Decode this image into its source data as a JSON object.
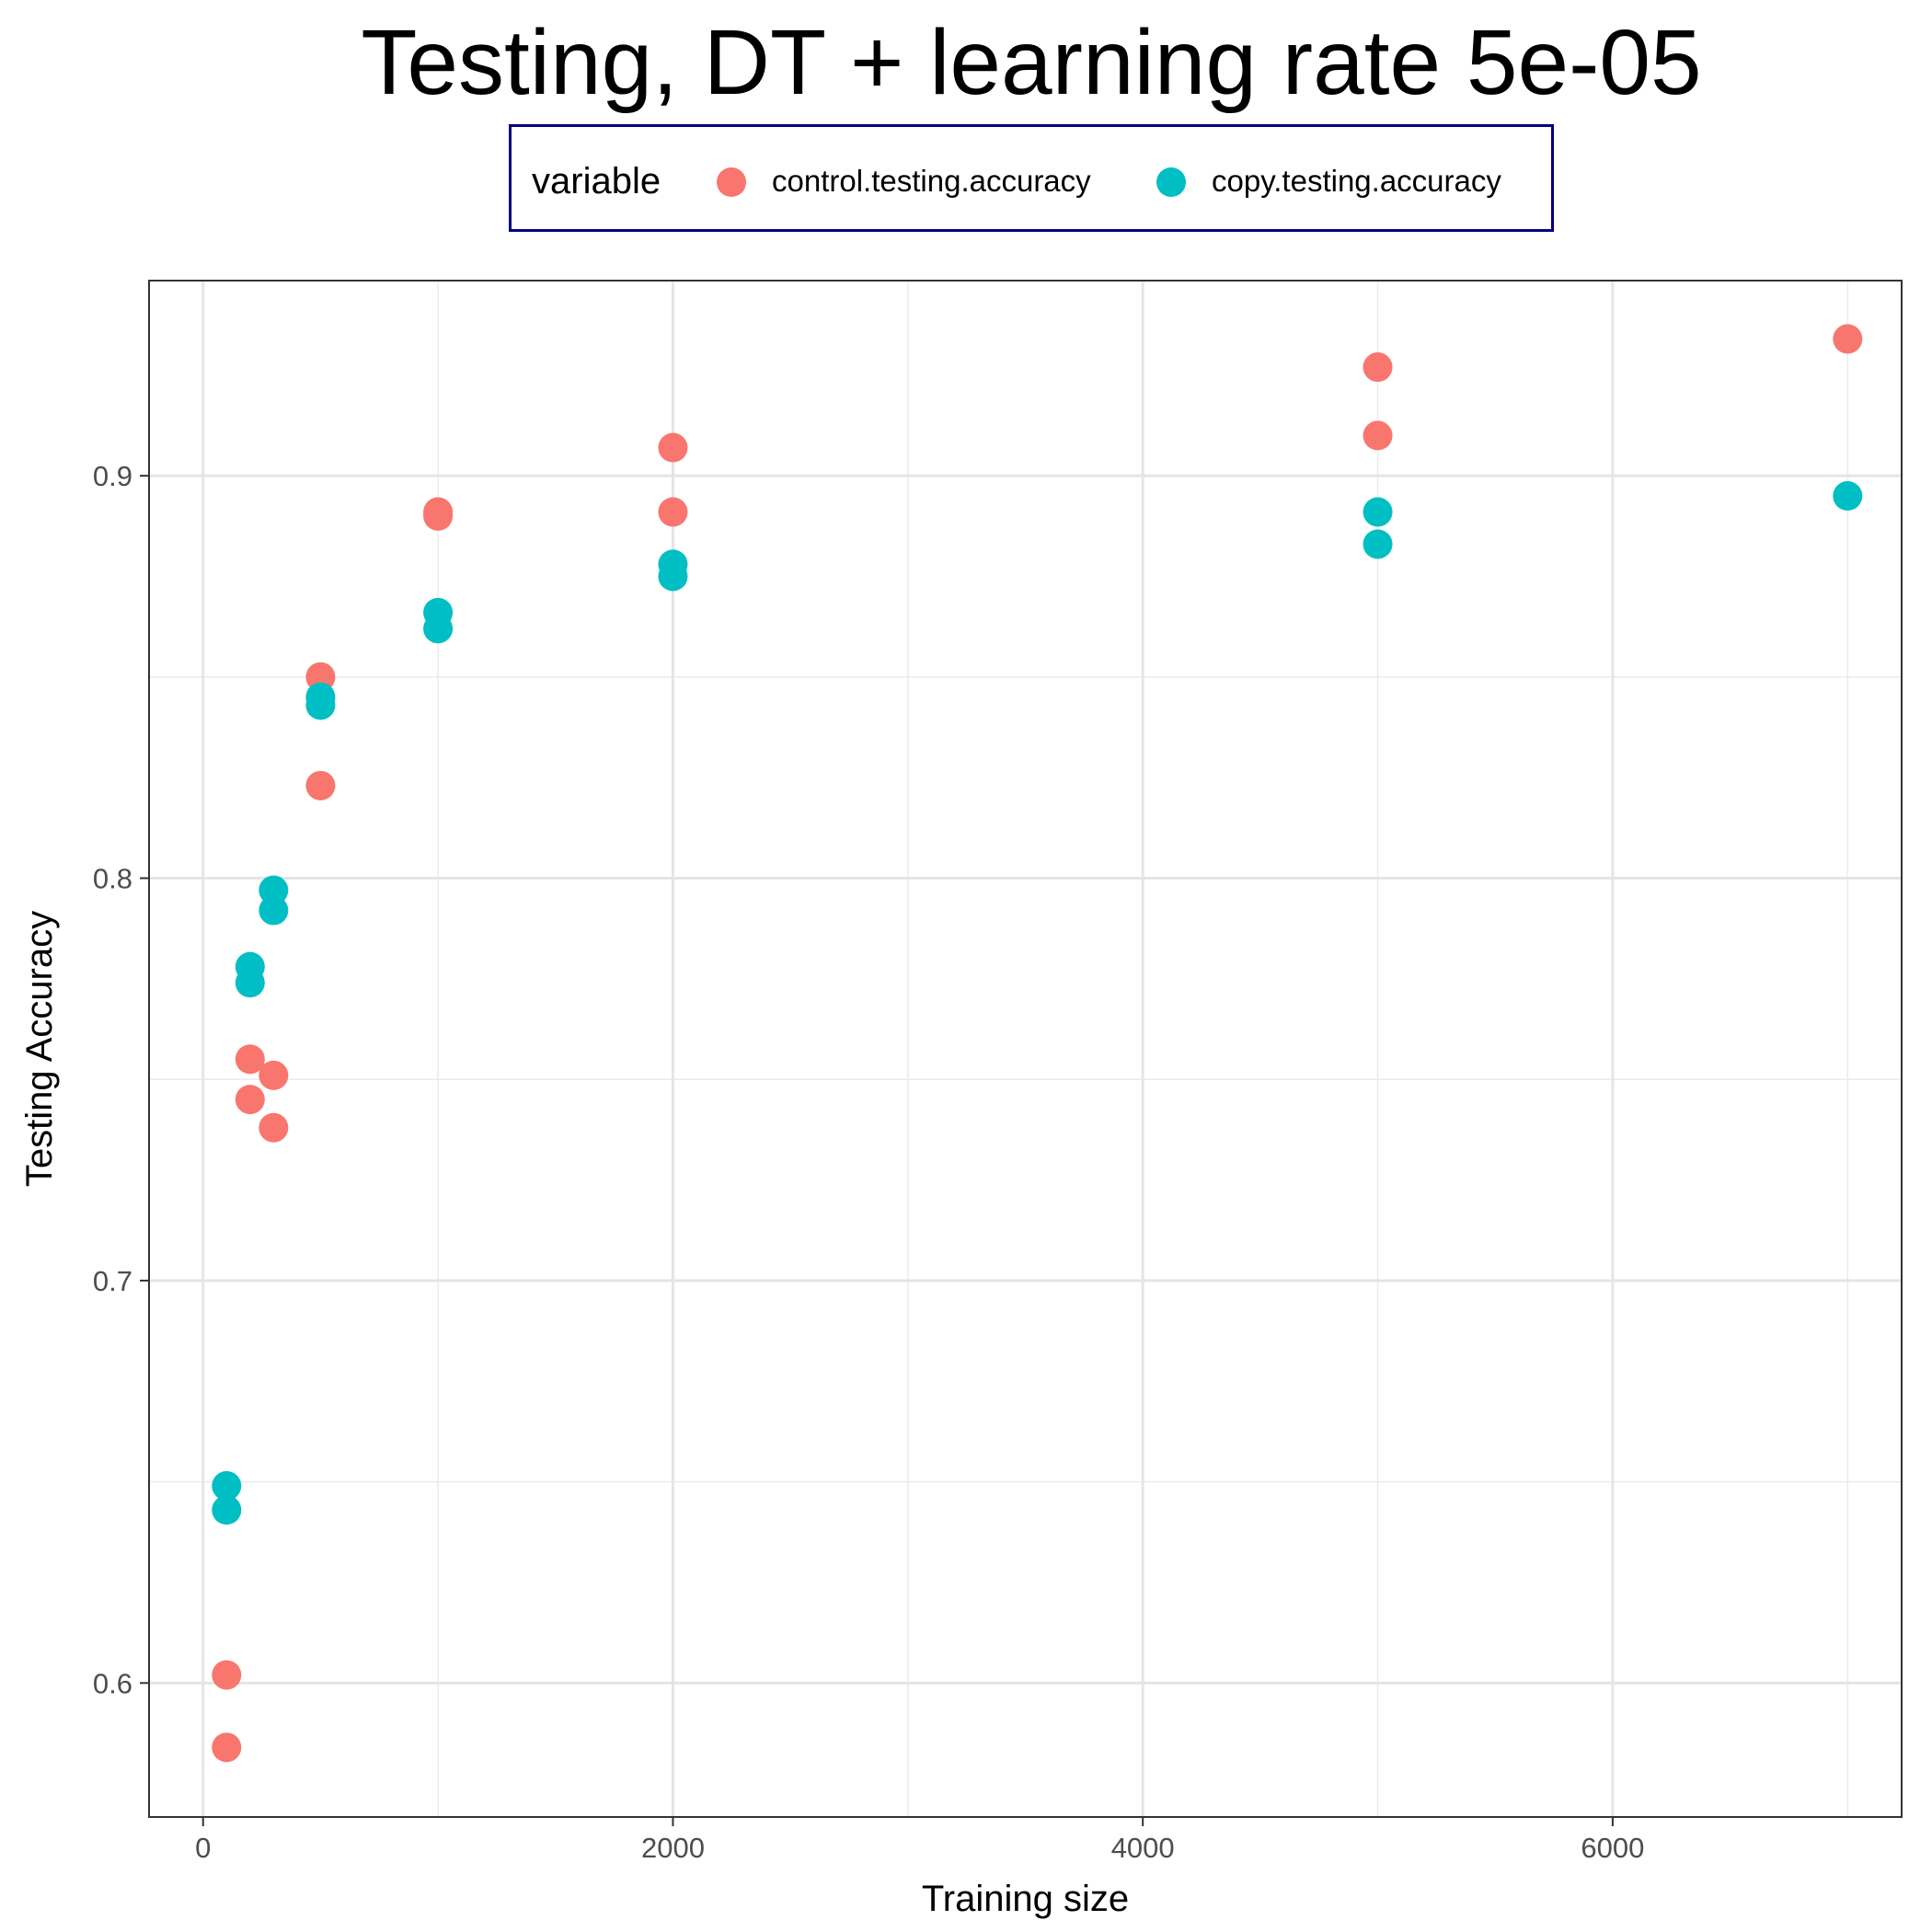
{
  "chart_data": {
    "type": "scatter",
    "title": "Testing, DT + learning rate 5e-05",
    "xlabel": "Training size",
    "ylabel": "Testing Accuracy",
    "xlim": [
      -230,
      7230
    ],
    "ylim": [
      0.5667,
      0.9485
    ],
    "x_ticks": [
      0,
      2000,
      4000,
      6000
    ],
    "x_tick_labels": [
      "0",
      "2000",
      "4000",
      "6000"
    ],
    "y_ticks": [
      0.6,
      0.7,
      0.8,
      0.9
    ],
    "y_tick_labels": [
      "0.6",
      "0.7",
      "0.8",
      "0.9"
    ],
    "grid": true,
    "legend": {
      "title": "variable",
      "placement": "top"
    },
    "series": [
      {
        "name": "control.testing.accuracy",
        "color": "#F8766D",
        "points": [
          {
            "x": 100,
            "y": 0.602
          },
          {
            "x": 100,
            "y": 0.584
          },
          {
            "x": 200,
            "y": 0.755
          },
          {
            "x": 200,
            "y": 0.745
          },
          {
            "x": 300,
            "y": 0.751
          },
          {
            "x": 300,
            "y": 0.738
          },
          {
            "x": 500,
            "y": 0.85
          },
          {
            "x": 500,
            "y": 0.823
          },
          {
            "x": 1000,
            "y": 0.891
          },
          {
            "x": 1000,
            "y": 0.89
          },
          {
            "x": 2000,
            "y": 0.907
          },
          {
            "x": 2000,
            "y": 0.891
          },
          {
            "x": 5000,
            "y": 0.927
          },
          {
            "x": 5000,
            "y": 0.91
          },
          {
            "x": 7000,
            "y": 0.934
          }
        ]
      },
      {
        "name": "copy.testing.accuracy",
        "color": "#00BFC4",
        "points": [
          {
            "x": 100,
            "y": 0.649
          },
          {
            "x": 100,
            "y": 0.643
          },
          {
            "x": 200,
            "y": 0.778
          },
          {
            "x": 200,
            "y": 0.774
          },
          {
            "x": 300,
            "y": 0.797
          },
          {
            "x": 300,
            "y": 0.792
          },
          {
            "x": 500,
            "y": 0.845
          },
          {
            "x": 500,
            "y": 0.843
          },
          {
            "x": 1000,
            "y": 0.866
          },
          {
            "x": 1000,
            "y": 0.862
          },
          {
            "x": 2000,
            "y": 0.878
          },
          {
            "x": 2000,
            "y": 0.875
          },
          {
            "x": 5000,
            "y": 0.891
          },
          {
            "x": 5000,
            "y": 0.883
          },
          {
            "x": 7000,
            "y": 0.895
          }
        ]
      }
    ]
  }
}
